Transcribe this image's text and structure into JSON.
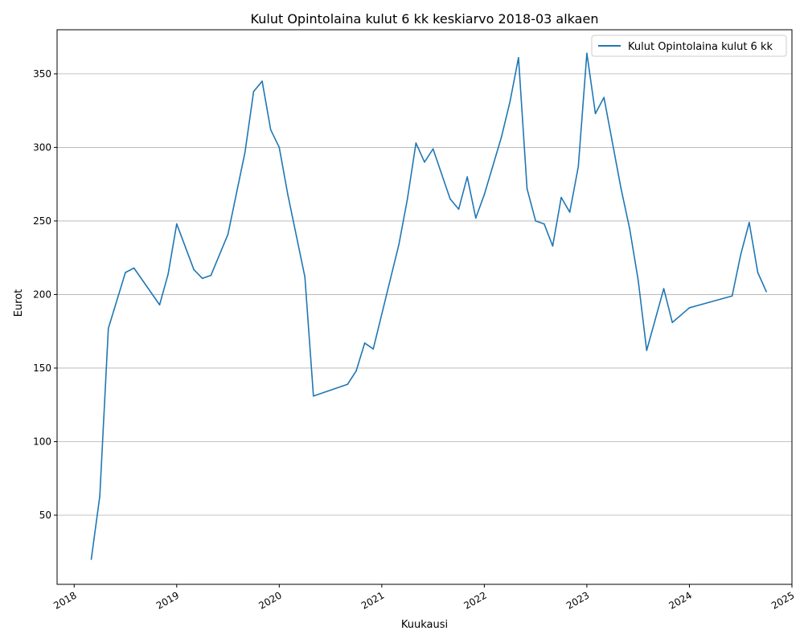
{
  "chart_data": {
    "type": "line",
    "title": "Kulut Opintolaina kulut 6 kk keskiarvo 2018-03 alkaen",
    "xlabel": "Kuukausi",
    "ylabel": "Eurot",
    "xlim": [
      "2017-11",
      "2025-01"
    ],
    "ylim": [
      3,
      380
    ],
    "x_ticks": [
      "2018",
      "2019",
      "2020",
      "2021",
      "2022",
      "2023",
      "2024",
      "2025"
    ],
    "y_ticks": [
      50,
      100,
      150,
      200,
      250,
      300,
      350
    ],
    "grid": "horizontal",
    "legend_position": "top-right",
    "series": [
      {
        "name": "Kulut Opintolaina kulut 6 kk",
        "color": "#1f77b4",
        "points": [
          [
            "2018-03",
            20
          ],
          [
            "2018-04",
            63
          ],
          [
            "2018-05",
            177
          ],
          [
            "2018-07",
            215
          ],
          [
            "2018-08",
            218
          ],
          [
            "2018-11",
            193
          ],
          [
            "2018-12",
            214
          ],
          [
            "2019-01",
            248
          ],
          [
            "2019-03",
            217
          ],
          [
            "2019-04",
            211
          ],
          [
            "2019-05",
            213
          ],
          [
            "2019-07",
            241
          ],
          [
            "2019-09",
            297
          ],
          [
            "2019-10",
            338
          ],
          [
            "2019-11",
            345
          ],
          [
            "2019-12",
            312
          ],
          [
            "2020-01",
            300
          ],
          [
            "2020-02",
            268
          ],
          [
            "2020-04",
            212
          ],
          [
            "2020-05",
            131
          ],
          [
            "2020-09",
            139
          ],
          [
            "2020-10",
            148
          ],
          [
            "2020-11",
            167
          ],
          [
            "2020-12",
            163
          ],
          [
            "2021-03",
            234
          ],
          [
            "2021-04",
            265
          ],
          [
            "2021-05",
            303
          ],
          [
            "2021-06",
            290
          ],
          [
            "2021-07",
            299
          ],
          [
            "2021-09",
            265
          ],
          [
            "2021-10",
            258
          ],
          [
            "2021-11",
            280
          ],
          [
            "2021-12",
            252
          ],
          [
            "2022-01",
            268
          ],
          [
            "2022-03",
            307
          ],
          [
            "2022-04",
            331
          ],
          [
            "2022-05",
            361
          ],
          [
            "2022-06",
            272
          ],
          [
            "2022-07",
            250
          ],
          [
            "2022-08",
            248
          ],
          [
            "2022-09",
            233
          ],
          [
            "2022-10",
            266
          ],
          [
            "2022-11",
            256
          ],
          [
            "2022-12",
            287
          ],
          [
            "2023-01",
            364
          ],
          [
            "2023-02",
            323
          ],
          [
            "2023-03",
            334
          ],
          [
            "2023-05",
            272
          ],
          [
            "2023-06",
            245
          ],
          [
            "2023-07",
            210
          ],
          [
            "2023-08",
            162
          ],
          [
            "2023-10",
            204
          ],
          [
            "2023-11",
            181
          ],
          [
            "2024-01",
            191
          ],
          [
            "2024-06",
            199
          ],
          [
            "2024-07",
            227
          ],
          [
            "2024-08",
            249
          ],
          [
            "2024-09",
            215
          ],
          [
            "2024-10",
            202
          ]
        ]
      }
    ]
  }
}
